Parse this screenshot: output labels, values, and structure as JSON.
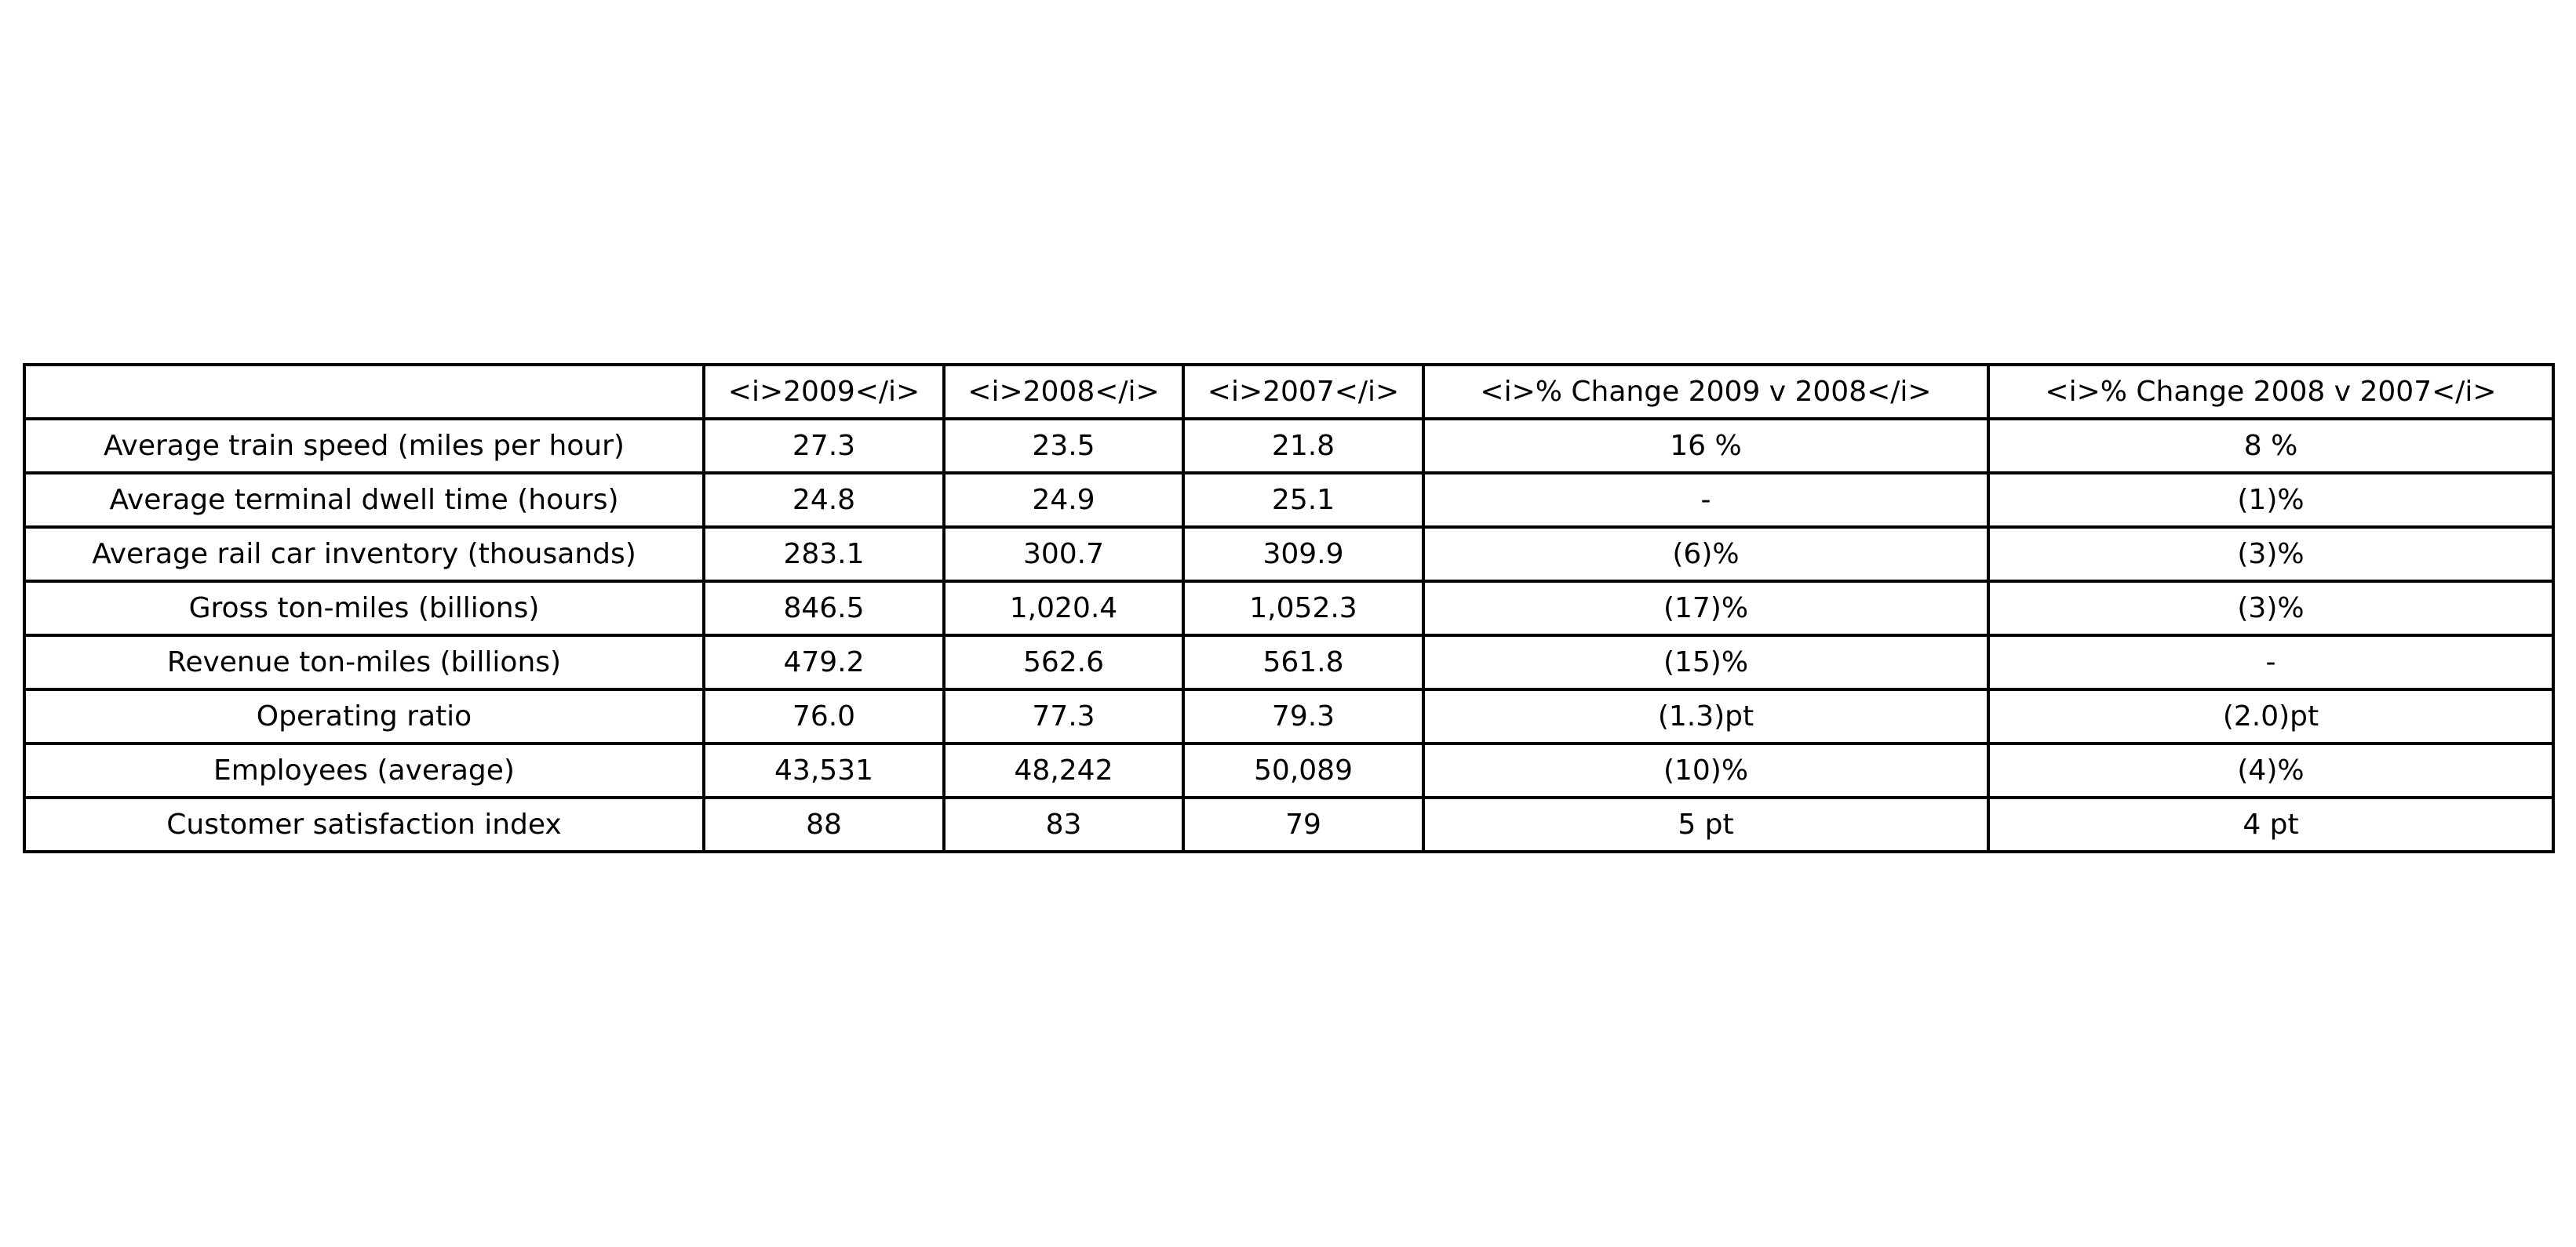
{
  "chart_data": {
    "type": "table",
    "columns": [
      "",
      "<i>2009</i>",
      "<i>2008</i>",
      "<i>2007</i>",
      "<i>% Change 2009 v 2008</i>",
      "<i>% Change 2008 v 2007</i>"
    ],
    "rows": [
      [
        "Average train speed (miles per hour)",
        "27.3",
        "23.5",
        "21.8",
        "16 %",
        "8 %"
      ],
      [
        "Average terminal dwell time (hours)",
        "24.8",
        "24.9",
        "25.1",
        "-",
        "(1)%"
      ],
      [
        "Average rail car inventory (thousands)",
        "283.1",
        "300.7",
        "309.9",
        "(6)%",
        "(3)%"
      ],
      [
        "Gross ton-miles (billions)",
        "846.5",
        "1,020.4",
        "1,052.3",
        "(17)%",
        "(3)%"
      ],
      [
        "Revenue ton-miles (billions)",
        "479.2",
        "562.6",
        "561.8",
        "(15)%",
        "-"
      ],
      [
        "Operating ratio",
        "76.0",
        "77.3",
        "79.3",
        "(1.3)pt",
        "(2.0)pt"
      ],
      [
        "Employees (average)",
        "43,531",
        "48,242",
        "50,089",
        "(10)%",
        "(4)%"
      ],
      [
        "Customer satisfaction index",
        "88",
        "83",
        "79",
        "5 pt",
        "4 pt"
      ]
    ],
    "border_color": "#000000",
    "text_color": "#000000"
  }
}
